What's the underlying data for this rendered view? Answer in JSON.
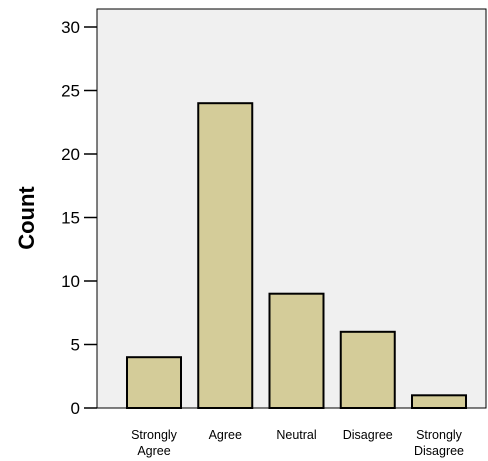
{
  "chart_data": {
    "type": "bar",
    "categories": [
      [
        "Strongly",
        "Agree"
      ],
      [
        "Agree"
      ],
      [
        "Neutral"
      ],
      [
        "Disagree"
      ],
      [
        "Strongly",
        "Disagree"
      ]
    ],
    "values": [
      4,
      24,
      9,
      6,
      1
    ],
    "ylabel": "Count",
    "xlabel": "",
    "ylim": [
      0,
      30
    ],
    "yticks": [
      0,
      5,
      10,
      15,
      20,
      25,
      30
    ],
    "grid": false,
    "legend": "none",
    "colors": {
      "bar_fill": "#d4cc99",
      "bar_stroke": "#000000",
      "plot_background": "#f0f0f0",
      "axis": "#000000"
    }
  }
}
